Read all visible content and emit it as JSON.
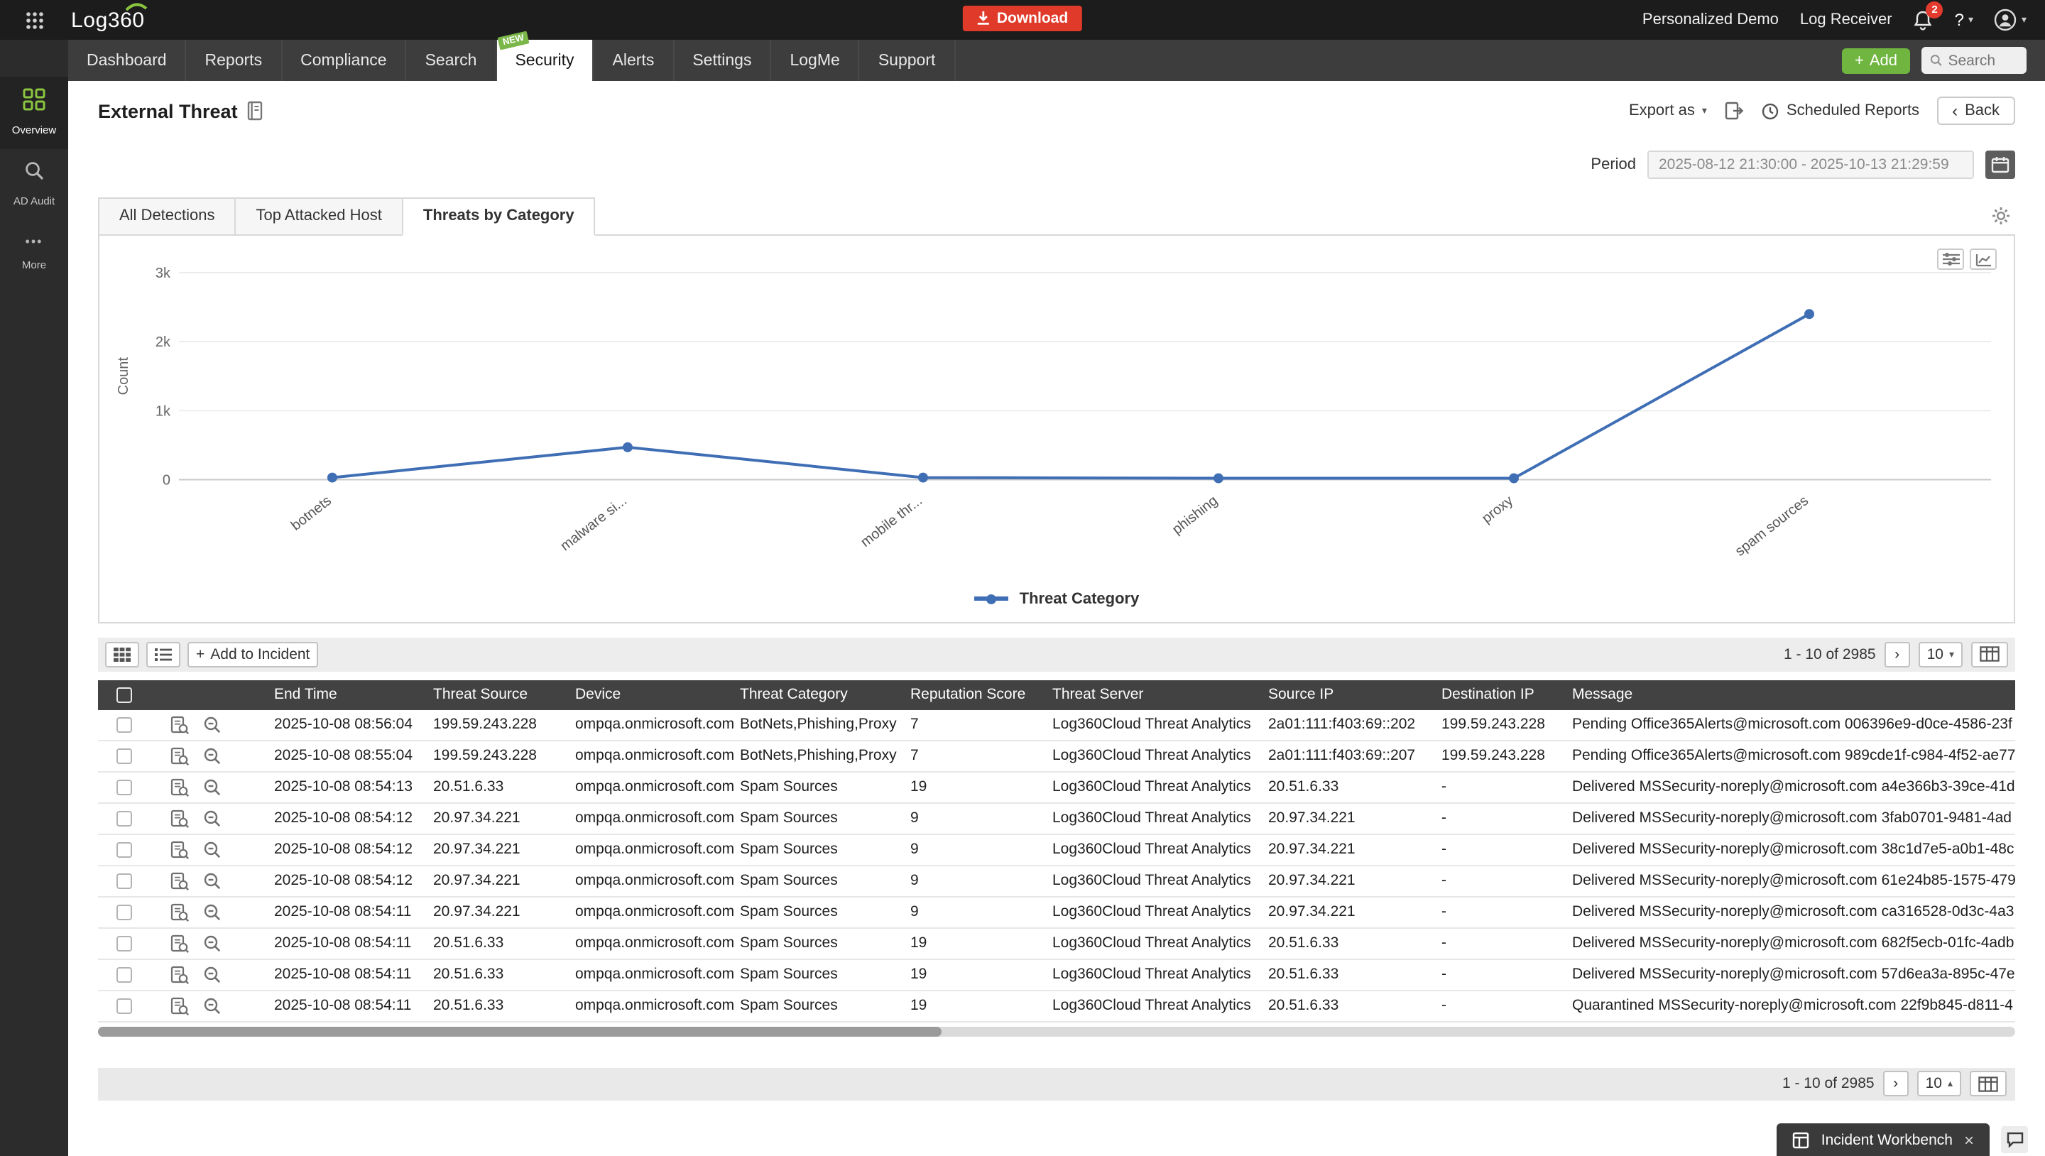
{
  "colors": {
    "accent_green": "#7ab648",
    "brand_red": "#e03b2a",
    "chart_line_blue": "#3f6eb5",
    "table_header_dark": "#424242"
  },
  "glyphs": {
    "plus": "+",
    "caret_down": "▾",
    "caret_up": "▴",
    "chevron_left": "‹",
    "chevron_right": "›",
    "close": "×",
    "more": "•••",
    "question": "?"
  },
  "topbar": {
    "logo": "Log360",
    "download": "Download",
    "links": [
      "Personalized Demo",
      "Log Receiver"
    ],
    "notification_count": "2"
  },
  "sidebar": {
    "items": [
      {
        "label": "Overview",
        "icon": "overview-grid-icon",
        "active": true
      },
      {
        "label": "AD Audit",
        "icon": "ad-audit-search-icon",
        "active": false
      },
      {
        "label": "More",
        "icon": "more-dots-icon",
        "active": false
      }
    ]
  },
  "nav": {
    "tabs": [
      {
        "label": "Dashboard"
      },
      {
        "label": "Reports"
      },
      {
        "label": "Compliance"
      },
      {
        "label": "Search"
      },
      {
        "label": "Security",
        "active": true,
        "badge": "NEW"
      },
      {
        "label": "Alerts"
      },
      {
        "label": "Settings"
      },
      {
        "label": "LogMe"
      },
      {
        "label": "Support"
      }
    ],
    "add_label": "Add",
    "search_placeholder": "Search"
  },
  "page": {
    "title": "External Threat",
    "export_as": "Export as",
    "scheduled_reports": "Scheduled Reports",
    "back": "Back"
  },
  "period": {
    "label": "Period",
    "value": "2025-08-12 21:30:00 - 2025-10-13 21:29:59"
  },
  "view_tabs": [
    {
      "label": "All Detections",
      "active": false
    },
    {
      "label": "Top Attacked Host",
      "active": false
    },
    {
      "label": "Threats by Category",
      "active": true
    }
  ],
  "chart_data": {
    "type": "line",
    "title": "",
    "categories": [
      "botnets",
      "malware si...",
      "mobile thr...",
      "phishing",
      "proxy",
      "spam sources"
    ],
    "series": [
      {
        "name": "Threat Category",
        "values": [
          30,
          470,
          30,
          20,
          20,
          2400
        ]
      }
    ],
    "xlabel": "",
    "ylabel": "Count",
    "ylim": [
      0,
      3000
    ],
    "yticks": [
      "0",
      "1k",
      "2k",
      "3k"
    ],
    "grid": true,
    "legend": "Threat Category",
    "legend_position": "bottom",
    "line_color": "#3f6eb5"
  },
  "toolbar": {
    "add_to_incident": "Add to Incident",
    "range": "1 - 10 of 2985",
    "page_size": "10"
  },
  "table": {
    "columns": [
      "End Time",
      "Threat Source",
      "Device",
      "Threat Category",
      "Reputation Score",
      "Threat Server",
      "Source IP",
      "Destination IP",
      "Message"
    ],
    "rows": [
      [
        "2025-10-08 08:56:04",
        "199.59.243.228",
        "ompqa.onmicrosoft.com",
        "BotNets,Phishing,Proxy",
        "7",
        "Log360Cloud Threat Analytics",
        "2a01:111:f403:69::202",
        "199.59.243.228",
        "Pending Office365Alerts@microsoft.com 006396e9-d0ce-4586-23f"
      ],
      [
        "2025-10-08 08:55:04",
        "199.59.243.228",
        "ompqa.onmicrosoft.com",
        "BotNets,Phishing,Proxy",
        "7",
        "Log360Cloud Threat Analytics",
        "2a01:111:f403:69::207",
        "199.59.243.228",
        "Pending Office365Alerts@microsoft.com 989cde1f-c984-4f52-ae77"
      ],
      [
        "2025-10-08 08:54:13",
        "20.51.6.33",
        "ompqa.onmicrosoft.com",
        "Spam Sources",
        "19",
        "Log360Cloud Threat Analytics",
        "20.51.6.33",
        "-",
        "Delivered MSSecurity-noreply@microsoft.com a4e366b3-39ce-41d"
      ],
      [
        "2025-10-08 08:54:12",
        "20.97.34.221",
        "ompqa.onmicrosoft.com",
        "Spam Sources",
        "9",
        "Log360Cloud Threat Analytics",
        "20.97.34.221",
        "-",
        "Delivered MSSecurity-noreply@microsoft.com 3fab0701-9481-4ad"
      ],
      [
        "2025-10-08 08:54:12",
        "20.97.34.221",
        "ompqa.onmicrosoft.com",
        "Spam Sources",
        "9",
        "Log360Cloud Threat Analytics",
        "20.97.34.221",
        "-",
        "Delivered MSSecurity-noreply@microsoft.com 38c1d7e5-a0b1-48c"
      ],
      [
        "2025-10-08 08:54:12",
        "20.97.34.221",
        "ompqa.onmicrosoft.com",
        "Spam Sources",
        "9",
        "Log360Cloud Threat Analytics",
        "20.97.34.221",
        "-",
        "Delivered MSSecurity-noreply@microsoft.com 61e24b85-1575-479"
      ],
      [
        "2025-10-08 08:54:11",
        "20.97.34.221",
        "ompqa.onmicrosoft.com",
        "Spam Sources",
        "9",
        "Log360Cloud Threat Analytics",
        "20.97.34.221",
        "-",
        "Delivered MSSecurity-noreply@microsoft.com ca316528-0d3c-4a3"
      ],
      [
        "2025-10-08 08:54:11",
        "20.51.6.33",
        "ompqa.onmicrosoft.com",
        "Spam Sources",
        "19",
        "Log360Cloud Threat Analytics",
        "20.51.6.33",
        "-",
        "Delivered MSSecurity-noreply@microsoft.com 682f5ecb-01fc-4adb"
      ],
      [
        "2025-10-08 08:54:11",
        "20.51.6.33",
        "ompqa.onmicrosoft.com",
        "Spam Sources",
        "19",
        "Log360Cloud Threat Analytics",
        "20.51.6.33",
        "-",
        "Delivered MSSecurity-noreply@microsoft.com 57d6ea3a-895c-47e"
      ],
      [
        "2025-10-08 08:54:11",
        "20.51.6.33",
        "ompqa.onmicrosoft.com",
        "Spam Sources",
        "19",
        "Log360Cloud Threat Analytics",
        "20.51.6.33",
        "-",
        "Quarantined MSSecurity-noreply@microsoft.com 22f9b845-d811-4"
      ]
    ]
  },
  "footer": {
    "range": "1 - 10 of 2985",
    "page_size": "10"
  },
  "workbench": {
    "label": "Incident Workbench"
  }
}
